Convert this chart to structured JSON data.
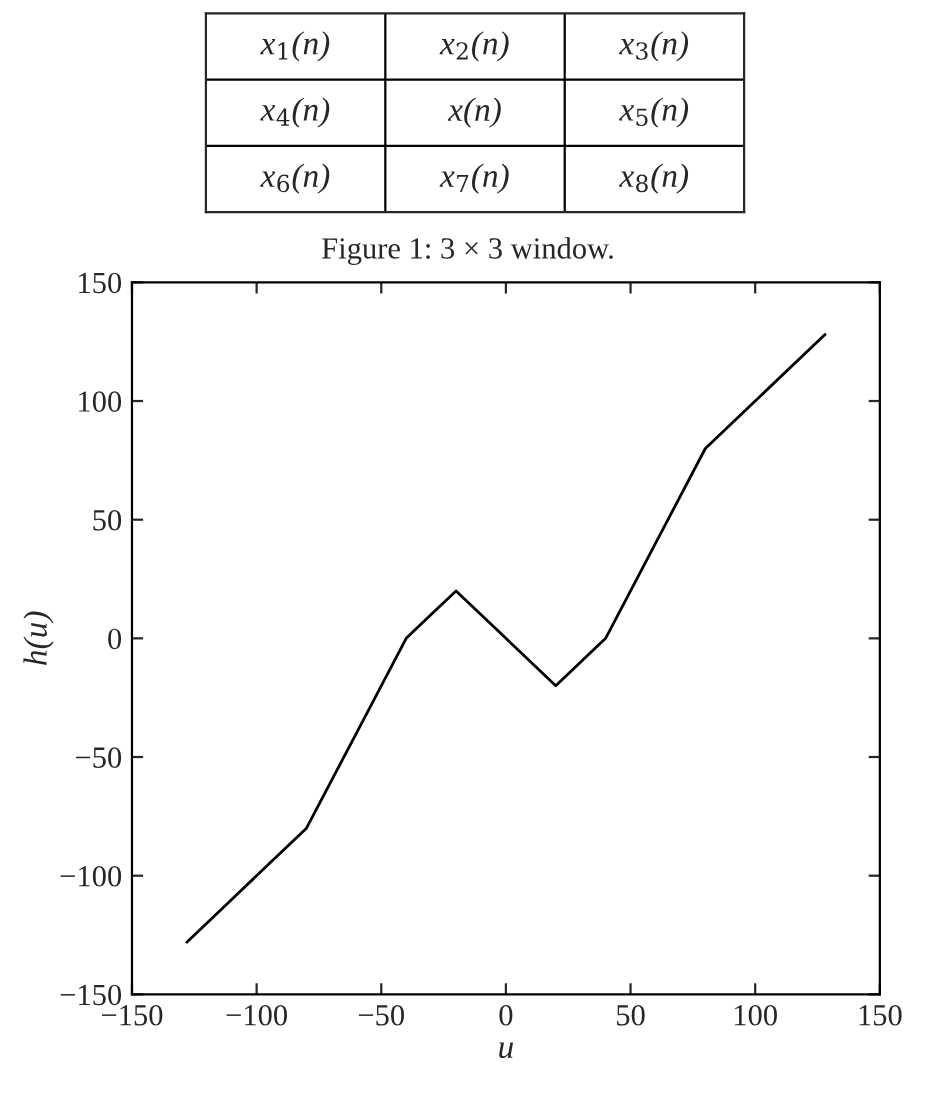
{
  "chart_data": [
    {
      "type": "other",
      "annotations": [
        "x$_{1}$(n)",
        "x$_{2}$(n)",
        "x$_{3}$(n)",
        "x$_{4}$(n)",
        "x(n)",
        "x$_{5}$(n)",
        "x$_{6}$(n)",
        "x$_{7}$(n)",
        "x$_{8}$(n)",
        "Figure 1: 3 × 3 window."
      ]
    },
    {
      "type": "line",
      "xlabel": "u",
      "ylabel": "h(u)",
      "x": [
        -128,
        -110,
        -95,
        -80,
        -60,
        -40,
        -30,
        -20,
        0,
        20,
        30,
        40,
        60,
        80,
        100,
        128
      ],
      "series": [
        {
          "color": "#000000",
          "values": [
            -128,
            -110,
            -95,
            -80,
            -40,
            0,
            10,
            20,
            0,
            -20,
            -10,
            0,
            40,
            80,
            100,
            128
          ]
        }
      ],
      "xlim": [
        -150,
        150
      ],
      "xticks": [
        -150,
        -100,
        -50,
        0,
        50,
        100,
        150
      ],
      "ylim": [
        -150,
        150
      ],
      "yticks": [
        -150,
        -100,
        -50,
        0,
        50,
        100,
        150
      ],
      "grid": false,
      "legend": false,
      "marker": "none",
      "line_style": "solid"
    }
  ]
}
